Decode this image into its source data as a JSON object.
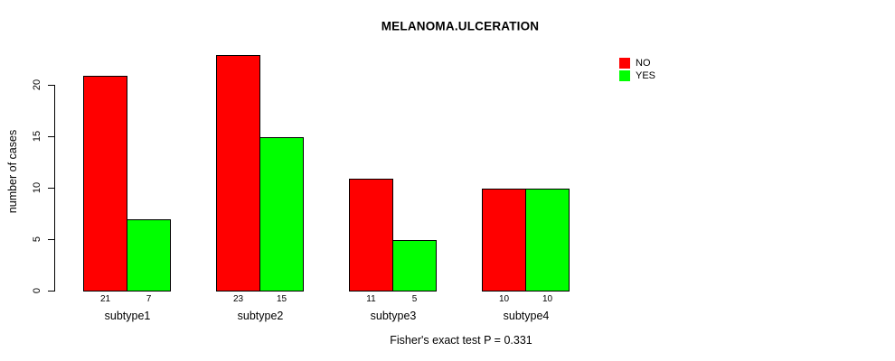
{
  "chart_data": {
    "type": "bar",
    "title": "MELANOMA.ULCERATION",
    "xlabel": "",
    "ylabel": "number of cases",
    "categories": [
      "subtype1",
      "subtype2",
      "subtype3",
      "subtype4"
    ],
    "series": [
      {
        "name": "NO",
        "color": "#FF0000",
        "values": [
          21,
          23,
          11,
          10
        ]
      },
      {
        "name": "YES",
        "color": "#00FF00",
        "values": [
          7,
          15,
          5,
          10
        ]
      }
    ],
    "bar_value_labels_shown": true,
    "yticks": [
      0,
      5,
      10,
      15,
      20
    ],
    "ylim": [
      0,
      23
    ],
    "grid": false,
    "legend_position": "top-right",
    "annotation": "Fisher's exact test P = 0.331"
  },
  "colors": {
    "background": "#FFFFFF",
    "axis": "#000000",
    "text": "#000000",
    "bar_border": "#000000"
  }
}
